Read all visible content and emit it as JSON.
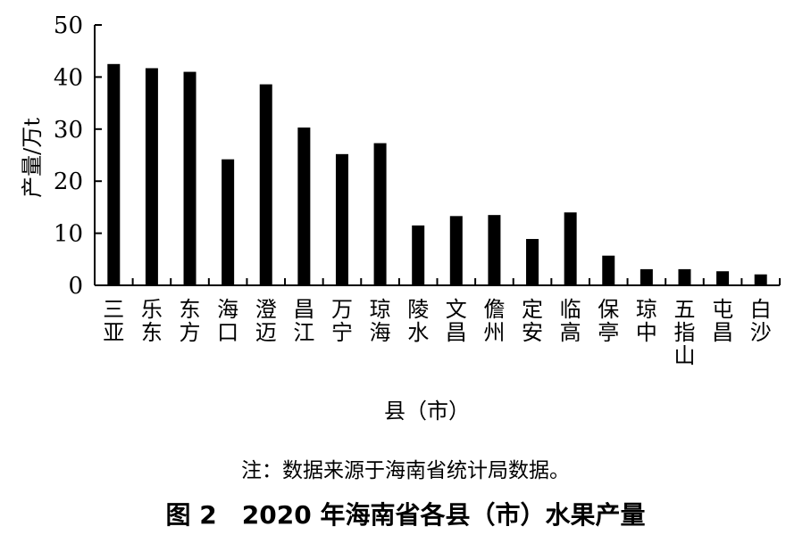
{
  "chart_data": {
    "type": "bar",
    "title": "",
    "xlabel": "县（市）",
    "ylabel": "产量/万t",
    "ylim": [
      0,
      50
    ],
    "yticks": [
      "0",
      "10",
      "20",
      "30",
      "40",
      "50"
    ],
    "grid": false,
    "legend": "none",
    "bar_color": "#000000",
    "categories": [
      "三亚",
      "乐东",
      "东方",
      "海口",
      "澄迈",
      "昌江",
      "万宁",
      "琼海",
      "陵水",
      "文昌",
      "儋州",
      "定安",
      "临高",
      "保亭",
      "琼中",
      "五指山",
      "屯昌",
      "白沙"
    ],
    "values": [
      42.5,
      41.7,
      41.0,
      24.2,
      38.6,
      30.3,
      25.2,
      27.3,
      11.5,
      13.3,
      13.5,
      8.9,
      14.0,
      5.7,
      3.1,
      3.1,
      2.7,
      2.1
    ]
  },
  "note": "注：数据来源于海南省统计局数据。",
  "caption": "图 2　2020 年海南省各县（市）水果产量"
}
